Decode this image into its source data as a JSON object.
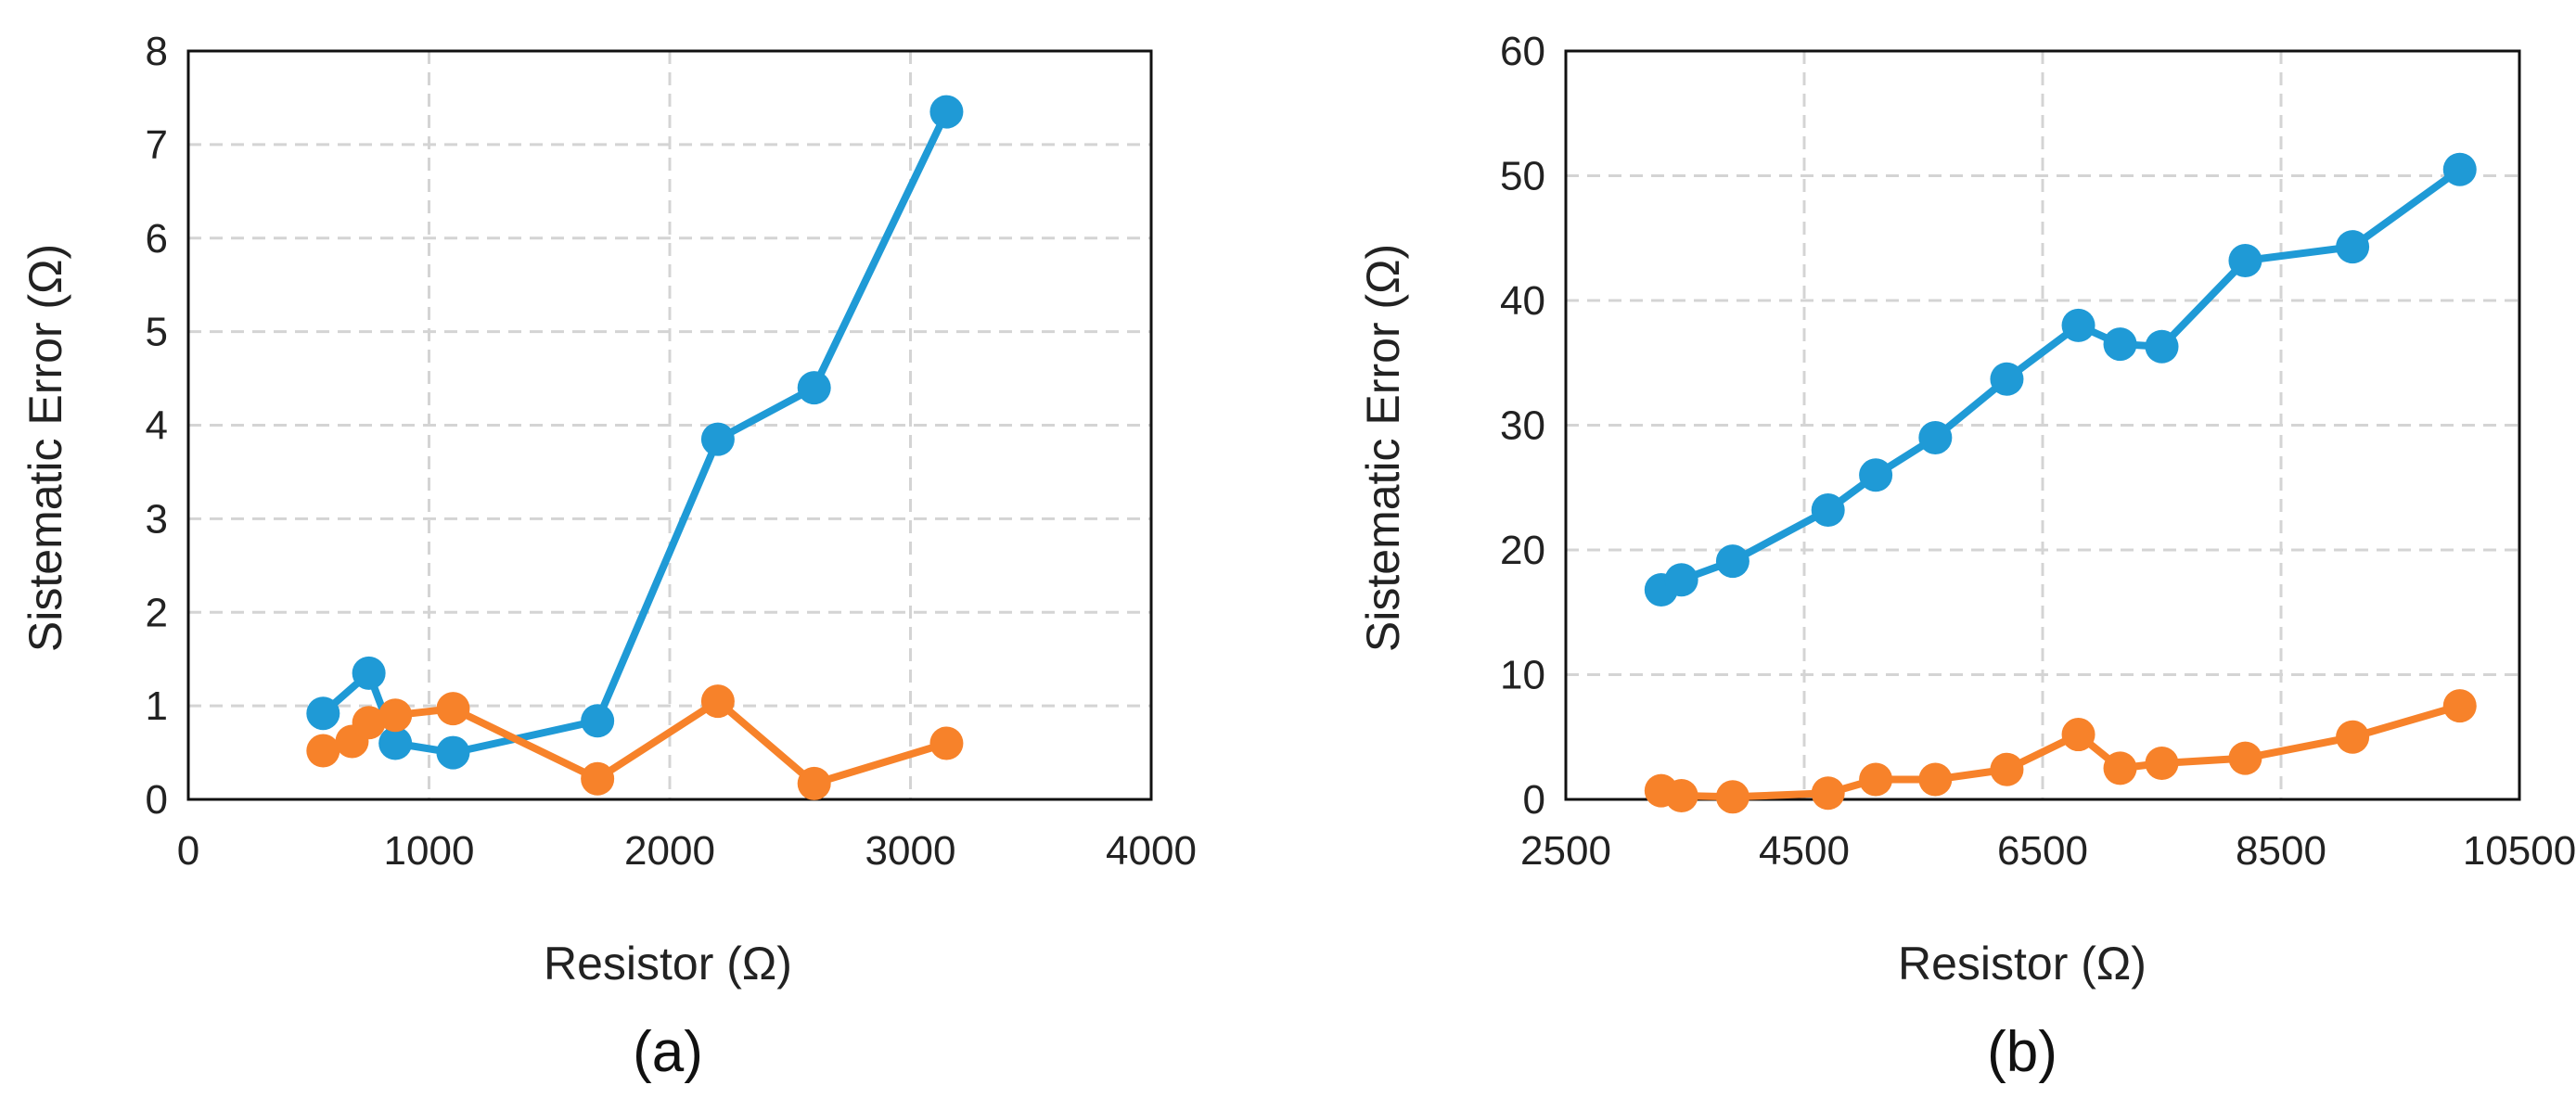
{
  "chart_data": [
    {
      "type": "line",
      "caption": "(a)",
      "xlabel": "Resistor (Ω)",
      "ylabel": "Sistematic Error (Ω)",
      "xlim": [
        0,
        4000
      ],
      "ylim": [
        0,
        8
      ],
      "xticks": [
        "0",
        "1000",
        "2000",
        "3000",
        "4000"
      ],
      "yticks": [
        "0",
        "1",
        "2",
        "3",
        "4",
        "5",
        "6",
        "7",
        "8"
      ],
      "grid": true,
      "series": [
        {
          "name": "series-blue",
          "color": "#1f9ad6",
          "x": [
            560,
            750,
            860,
            1100,
            1700,
            2200,
            2600,
            3150
          ],
          "y": [
            0.92,
            1.35,
            0.6,
            0.5,
            0.84,
            3.85,
            4.4,
            7.35
          ]
        },
        {
          "name": "series-orange",
          "color": "#f7822a",
          "x": [
            560,
            680,
            750,
            860,
            1100,
            1700,
            2200,
            2600,
            3150
          ],
          "y": [
            0.52,
            0.62,
            0.82,
            0.9,
            0.97,
            0.22,
            1.05,
            0.17,
            0.6
          ]
        }
      ]
    },
    {
      "type": "line",
      "caption": "(b)",
      "xlabel": "Resistor (Ω)",
      "ylabel": "Sistematic Error (Ω)",
      "xlim": [
        2500,
        10500
      ],
      "ylim": [
        0,
        60
      ],
      "xticks": [
        "2500",
        "4500",
        "6500",
        "8500",
        "10500"
      ],
      "yticks": [
        "0",
        "10",
        "20",
        "30",
        "40",
        "50",
        "60"
      ],
      "grid": true,
      "series": [
        {
          "name": "series-blue",
          "color": "#1f9ad6",
          "x": [
            3300,
            3470,
            3900,
            4700,
            5100,
            5600,
            6200,
            6800,
            7150,
            7500,
            8200,
            9100,
            10000
          ],
          "y": [
            16.8,
            17.6,
            19.1,
            23.2,
            26.0,
            29.0,
            33.7,
            38.0,
            36.5,
            36.3,
            43.2,
            44.3,
            50.5
          ]
        },
        {
          "name": "series-orange",
          "color": "#f7822a",
          "x": [
            3300,
            3470,
            3900,
            4700,
            5100,
            5600,
            6200,
            6800,
            7150,
            7500,
            8200,
            9100,
            10000
          ],
          "y": [
            0.7,
            0.3,
            0.2,
            0.5,
            1.6,
            1.6,
            2.4,
            5.2,
            2.5,
            2.9,
            3.3,
            5.0,
            7.5
          ]
        }
      ]
    }
  ]
}
